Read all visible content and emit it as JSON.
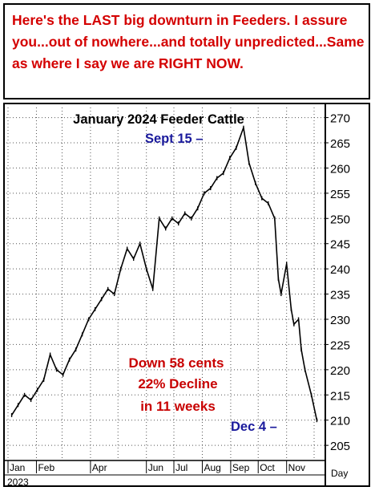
{
  "banner": {
    "text": "Here's the LAST big downturn in Feeders. I assure you...out of nowhere...and totally unpredicted...Same as where I say we are RIGHT NOW."
  },
  "colors": {
    "banner_text": "#d40000",
    "annotation_red": "#c80000",
    "annotation_blue": "#1a1a9c",
    "price_line": "#000000",
    "grid": "#555555"
  },
  "chart_data": {
    "type": "line",
    "title": "January 2024 Feeder Cattle",
    "xlabel": "Day",
    "ylabel": "",
    "year_label": "2023",
    "ylim": [
      202,
      272
    ],
    "y_ticks": [
      205,
      210,
      215,
      220,
      225,
      230,
      235,
      240,
      245,
      250,
      255,
      260,
      265,
      270
    ],
    "month_labels": [
      "Jan",
      "Feb",
      "Apr",
      "Jun",
      "Jul",
      "Aug",
      "Sep",
      "Oct",
      "Nov"
    ],
    "grid": true,
    "series": [
      {
        "values": [
          [
            "2023-01-05",
            211
          ],
          [
            "2023-01-12",
            213
          ],
          [
            "2023-01-19",
            215
          ],
          [
            "2023-01-26",
            214
          ],
          [
            "2023-02-02",
            216
          ],
          [
            "2023-02-09",
            218
          ],
          [
            "2023-02-16",
            223
          ],
          [
            "2023-02-23",
            220
          ],
          [
            "2023-03-02",
            219
          ],
          [
            "2023-03-09",
            222
          ],
          [
            "2023-03-16",
            224
          ],
          [
            "2023-03-23",
            227
          ],
          [
            "2023-03-30",
            230
          ],
          [
            "2023-04-06",
            232
          ],
          [
            "2023-04-13",
            234
          ],
          [
            "2023-04-20",
            236
          ],
          [
            "2023-04-27",
            235
          ],
          [
            "2023-05-04",
            240
          ],
          [
            "2023-05-11",
            244
          ],
          [
            "2023-05-18",
            242
          ],
          [
            "2023-05-25",
            245
          ],
          [
            "2023-06-01",
            240
          ],
          [
            "2023-06-08",
            236
          ],
          [
            "2023-06-15",
            250
          ],
          [
            "2023-06-22",
            248
          ],
          [
            "2023-06-29",
            250
          ],
          [
            "2023-07-06",
            249
          ],
          [
            "2023-07-13",
            251
          ],
          [
            "2023-07-20",
            250
          ],
          [
            "2023-07-27",
            252
          ],
          [
            "2023-08-03",
            255
          ],
          [
            "2023-08-10",
            256
          ],
          [
            "2023-08-17",
            258
          ],
          [
            "2023-08-24",
            259
          ],
          [
            "2023-08-31",
            262
          ],
          [
            "2023-09-07",
            264
          ],
          [
            "2023-09-15",
            268
          ],
          [
            "2023-09-21",
            261
          ],
          [
            "2023-09-28",
            257
          ],
          [
            "2023-10-05",
            254
          ],
          [
            "2023-10-12",
            253
          ],
          [
            "2023-10-19",
            250
          ],
          [
            "2023-10-23",
            238
          ],
          [
            "2023-10-26",
            235
          ],
          [
            "2023-11-01",
            241
          ],
          [
            "2023-11-06",
            232
          ],
          [
            "2023-11-09",
            229
          ],
          [
            "2023-11-14",
            230
          ],
          [
            "2023-11-17",
            224
          ],
          [
            "2023-11-21",
            220
          ],
          [
            "2023-11-28",
            215
          ],
          [
            "2023-12-04",
            210
          ]
        ]
      }
    ],
    "annotations": {
      "peak_label": "Sept 15 –",
      "low_label": "Dec 4 –",
      "decline_line1": "Down 58 cents",
      "decline_line2": "22% Decline",
      "decline_line3": "in 11 weeks"
    }
  }
}
